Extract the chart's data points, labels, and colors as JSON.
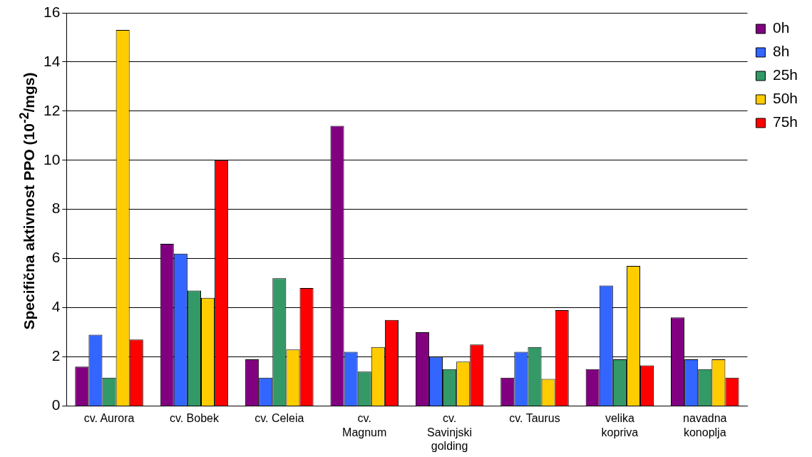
{
  "chart_data": {
    "type": "bar",
    "ylabel": "Specifična aktivnost PPO (10$^{-2}$/mgs)",
    "categories": [
      "cv. Aurora",
      "cv. Bobek",
      "cv. Celeia",
      "cv. Magnum",
      "cv. Savinjski golding",
      "cv. Taurus",
      "velika kopriva",
      "navadna konoplja"
    ],
    "series": [
      {
        "name": "0h",
        "color": "#800080",
        "values": [
          1.6,
          6.6,
          1.9,
          11.4,
          3.0,
          1.15,
          1.5,
          3.6
        ]
      },
      {
        "name": "8h",
        "color": "#3366ff",
        "values": [
          2.9,
          6.2,
          1.15,
          2.2,
          2.0,
          2.2,
          4.9,
          1.9
        ]
      },
      {
        "name": "25h",
        "color": "#339966",
        "values": [
          1.15,
          4.7,
          5.2,
          1.4,
          1.5,
          2.4,
          1.9,
          1.5
        ]
      },
      {
        "name": "50h",
        "color": "#ffcc00",
        "values": [
          15.3,
          4.4,
          2.3,
          2.4,
          1.8,
          1.1,
          5.7,
          1.9
        ]
      },
      {
        "name": "75h",
        "color": "#ff0000",
        "values": [
          2.7,
          10.0,
          4.8,
          3.5,
          2.5,
          3.9,
          1.65,
          1.15
        ]
      }
    ],
    "ylim": [
      0,
      16
    ],
    "yticks": [
      0,
      2,
      4,
      6,
      8,
      10,
      12,
      14,
      16
    ],
    "grid": "y",
    "legend": "right"
  }
}
